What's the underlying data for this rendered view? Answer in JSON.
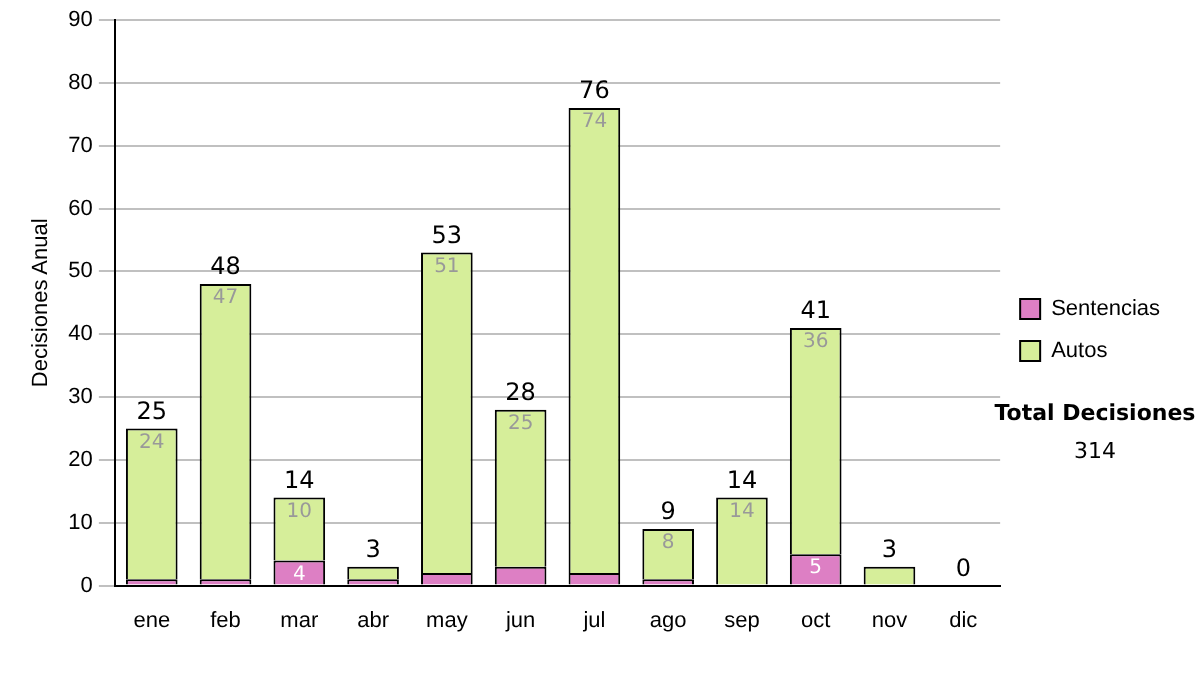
{
  "chart_data": {
    "type": "bar",
    "stacked": true,
    "ylabel": "Decisiones Anual",
    "categories": [
      "ene",
      "feb",
      "mar",
      "abr",
      "may",
      "jun",
      "jul",
      "ago",
      "sep",
      "oct",
      "nov",
      "dic"
    ],
    "series": [
      {
        "name": "Sentencias",
        "color": "#dd7fc4",
        "values": [
          1,
          1,
          4,
          1,
          2,
          3,
          2,
          1,
          0,
          5,
          0,
          0
        ],
        "value_labels": [
          null,
          null,
          "4",
          null,
          null,
          null,
          null,
          null,
          null,
          "5",
          null,
          null
        ]
      },
      {
        "name": "Autos",
        "color": "#d6ee9a",
        "values": [
          24,
          47,
          10,
          2,
          51,
          25,
          74,
          8,
          14,
          36,
          3,
          0
        ],
        "value_labels": [
          "24",
          "47",
          "10",
          null,
          "51",
          "25",
          "74",
          "8",
          "14",
          "36",
          null,
          null
        ]
      }
    ],
    "totals": [
      "25",
      "48",
      "14",
      "3",
      "53",
      "28",
      "76",
      "9",
      "14",
      "41",
      "3",
      "0"
    ],
    "ylim": [
      0,
      90
    ],
    "yticks": [
      0,
      10,
      20,
      30,
      40,
      50,
      60,
      70,
      80,
      90
    ],
    "grid": "y",
    "legend": "right",
    "annotations": [
      "Total Decisiones",
      "314"
    ]
  }
}
